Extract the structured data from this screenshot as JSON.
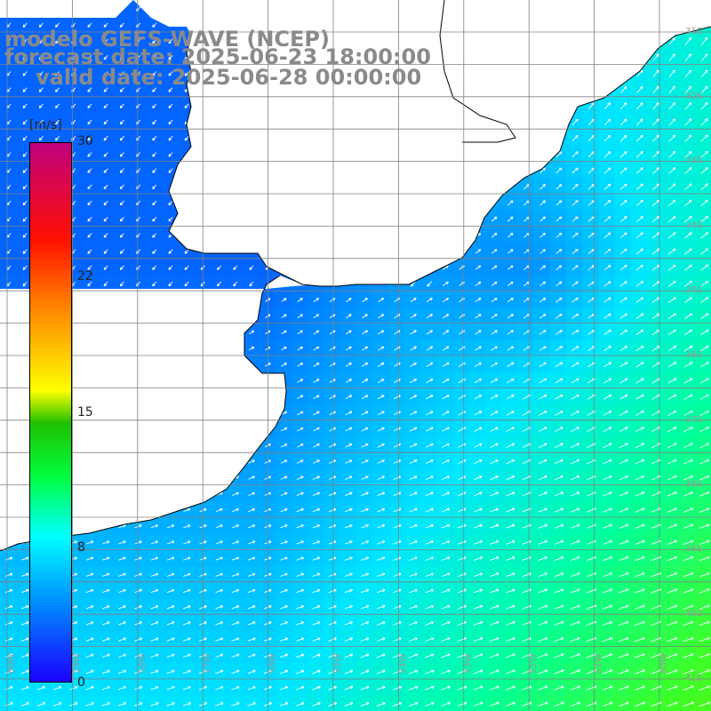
{
  "header": {
    "model": "modelo GEFS-WAVE (NCEP)",
    "forecast": "forecast date: 2025-06-23 18:00:00",
    "valid": "valid date: 2025-06-28 00:00:00"
  },
  "legend": {
    "unit": "[m/s]",
    "ticks": [
      "30",
      "22",
      "15",
      "8",
      "0"
    ],
    "tick_values": [
      30,
      22,
      15,
      8,
      0
    ],
    "colors": [
      "#1a00ff",
      "#0090ff",
      "#00ffff",
      "#00ff40",
      "#20c000",
      "#ffff00",
      "#ff8000",
      "#ff1000",
      "#c00080"
    ]
  },
  "grid_labels": {
    "lat": [
      "31S",
      "32S",
      "33S",
      "34S",
      "35S",
      "36S",
      "37S",
      "38S",
      "39S",
      "40S",
      "41S"
    ],
    "lon": [
      "60W",
      "59W",
      "58W",
      "57W",
      "56W",
      "55W",
      "54W",
      "53W",
      "52W",
      "51W",
      "50W"
    ]
  },
  "colors": {
    "land": "#ffffff",
    "grid": "#808080",
    "coast": "#000000",
    "arrow": "#ffffff"
  }
}
